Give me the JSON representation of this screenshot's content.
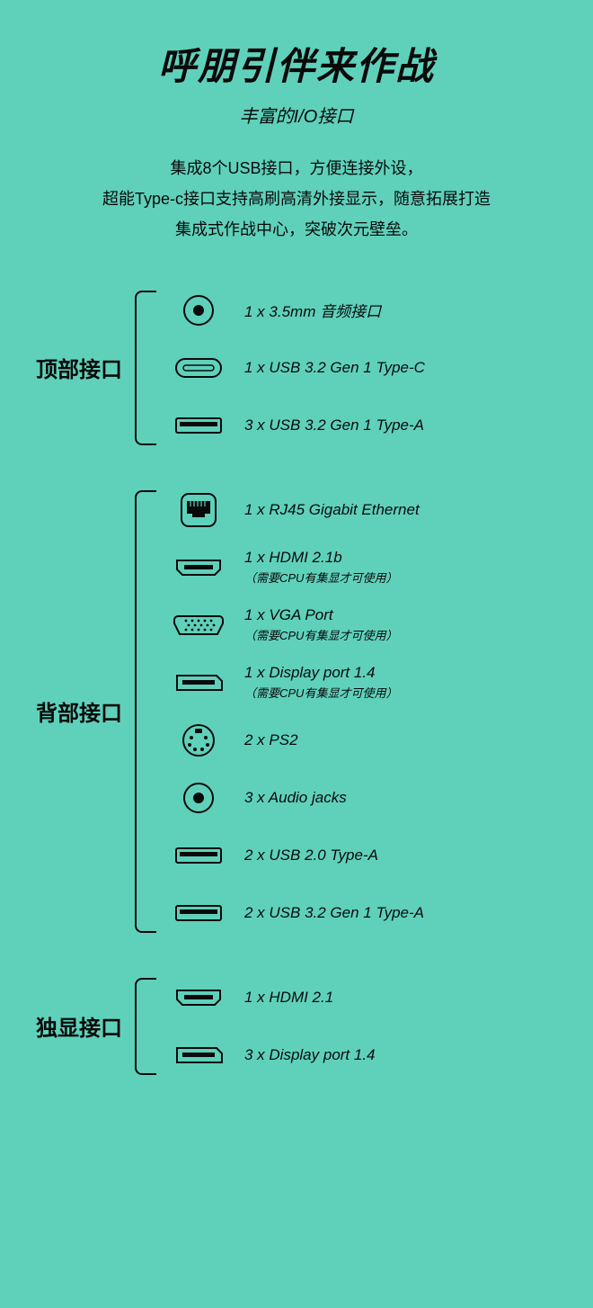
{
  "styling": {
    "bg": "#5fd1bb",
    "fg": "#0a0a0a",
    "title_fontsize": 42,
    "subtitle_fontsize": 20,
    "desc_fontsize": 18,
    "section_label_fontsize": 24,
    "port_label_fontsize": 17,
    "port_note_fontsize": 13,
    "italic": true,
    "stroke_width": 2,
    "icon_fill": "#0a0a0a"
  },
  "title": "呼朋引伴来作战",
  "subtitle": "丰富的I/O接口",
  "desc_lines": [
    "集成8个USB接口，方便连接外设，",
    "超能Type-c接口支持高刷高清外接显示，随意拓展打造",
    "集成式作战中心，突破次元壁垒。"
  ],
  "sections": [
    {
      "label": "顶部接口",
      "ports": [
        {
          "icon": "audio-jack",
          "label": "1 x 3.5mm 音频接口"
        },
        {
          "icon": "usb-c",
          "label": "1 x USB 3.2 Gen 1 Type-C"
        },
        {
          "icon": "usb-a",
          "label": "3 x USB 3.2 Gen 1 Type-A"
        }
      ]
    },
    {
      "label": "背部接口",
      "ports": [
        {
          "icon": "rj45",
          "label": "1 x RJ45 Gigabit Ethernet"
        },
        {
          "icon": "hdmi",
          "label": "1 x HDMI 2.1b",
          "note": "（需要CPU有集显才可使用）"
        },
        {
          "icon": "vga",
          "label": "1 x VGA Port",
          "note": "（需要CPU有集显才可使用）"
        },
        {
          "icon": "dp",
          "label": "1 x Display port 1.4",
          "note": "（需要CPU有集显才可使用）"
        },
        {
          "icon": "ps2",
          "label": "2 x PS2"
        },
        {
          "icon": "audio-jack",
          "label": "3 x Audio jacks"
        },
        {
          "icon": "usb-a",
          "label": "2 x USB 2.0 Type-A"
        },
        {
          "icon": "usb-a",
          "label": "2 x USB 3.2 Gen 1 Type-A"
        }
      ]
    },
    {
      "label": "独显接口",
      "ports": [
        {
          "icon": "hdmi",
          "label": "1 x HDMI 2.1"
        },
        {
          "icon": "dp",
          "label": "3 x Display port 1.4"
        }
      ]
    }
  ]
}
